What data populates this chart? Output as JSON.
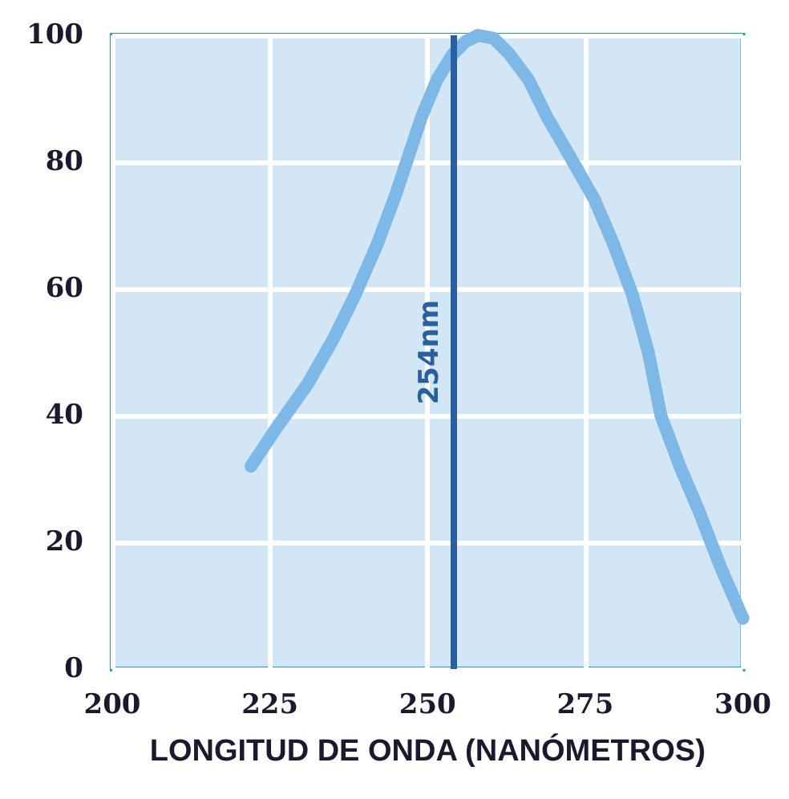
{
  "chart_data": {
    "type": "line",
    "xlabel": "LONGITUD DE ONDA (NANÓMETROS)",
    "series": [
      {
        "color": "#7db8e6",
        "x": [
          222,
          226,
          231,
          235,
          238.5,
          242,
          245,
          247,
          249,
          251.5,
          254,
          256,
          258,
          260.5,
          263,
          266,
          269,
          272.5,
          276.5,
          279.5,
          282.5,
          285,
          287,
          290,
          293,
          296.5,
          300
        ],
        "values": [
          32,
          38,
          45,
          52,
          59,
          67,
          75,
          81,
          87,
          93,
          97,
          99,
          100,
          99.5,
          97,
          93,
          87,
          81,
          74,
          67,
          59,
          50,
          40,
          32,
          25,
          16,
          8
        ]
      }
    ],
    "xlim": [
      200,
      300
    ],
    "xticks": [
      200,
      225,
      250,
      275,
      300
    ],
    "ylim": [
      0,
      100
    ],
    "yticks": [
      0,
      20,
      40,
      60,
      80,
      100
    ],
    "grid": true,
    "ref_lines": [
      {
        "axis": "x",
        "value": 254,
        "label": "254nm",
        "color": "#2a5fa0"
      }
    ]
  }
}
